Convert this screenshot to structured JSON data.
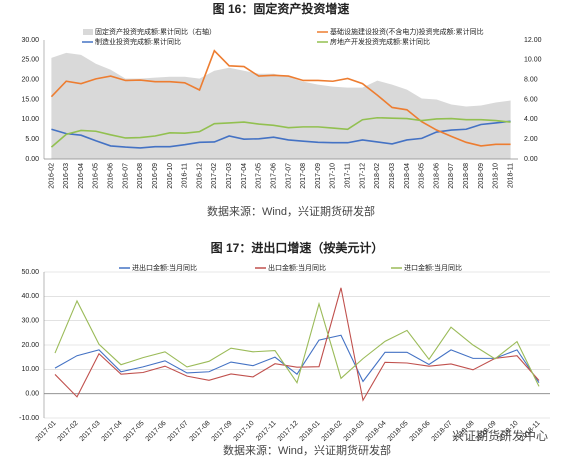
{
  "chart_data": [
    {
      "type": "line",
      "title": "图 16：固定资产投资增速",
      "source": "数据来源：Wind，兴证期货研发部",
      "categories": [
        "2016-02",
        "2016-03",
        "2016-04",
        "2016-05",
        "2016-06",
        "2016-07",
        "2016-08",
        "2016-09",
        "2016-10",
        "2016-11",
        "2016-12",
        "2017-02",
        "2017-03",
        "2017-04",
        "2017-05",
        "2017-06",
        "2017-07",
        "2017-08",
        "2017-09",
        "2017-10",
        "2017-11",
        "2017-12",
        "2018-02",
        "2018-03",
        "2018-04",
        "2018-05",
        "2018-06",
        "2018-07",
        "2018-08",
        "2018-09",
        "2018-10",
        "2018-11"
      ],
      "ylim": [
        0,
        30
      ],
      "yticks": [
        {
          "value": 0,
          "label": "0.00"
        },
        {
          "value": 5,
          "label": "5.00"
        },
        {
          "value": 10,
          "label": "10.00"
        },
        {
          "value": 15,
          "label": "15.00"
        },
        {
          "value": 20,
          "label": "20.00"
        },
        {
          "value": 25,
          "label": "25.00"
        },
        {
          "value": 30,
          "label": "30.00"
        }
      ],
      "y2lim": [
        0,
        12
      ],
      "y2ticks": [
        {
          "value": 0,
          "label": "0.00"
        },
        {
          "value": 2,
          "label": "2.00"
        },
        {
          "value": 4,
          "label": "4.00"
        },
        {
          "value": 6,
          "label": "6.00"
        },
        {
          "value": 8,
          "label": "8.00"
        },
        {
          "value": 10,
          "label": "10.00"
        },
        {
          "value": 12,
          "label": "12.00"
        }
      ],
      "grid": false,
      "series": [
        {
          "name": "固定资产投资完成额:累计同比（右轴）",
          "type": "area",
          "axis": "y2",
          "color": "#d9d9d9",
          "values": [
            10.2,
            10.7,
            10.5,
            9.6,
            9.0,
            8.1,
            8.1,
            8.2,
            8.3,
            8.3,
            8.1,
            8.9,
            9.2,
            8.9,
            8.6,
            8.6,
            8.3,
            7.8,
            7.5,
            7.3,
            7.2,
            7.2,
            7.9,
            7.5,
            7.0,
            6.1,
            6.0,
            5.5,
            5.3,
            5.4,
            5.7,
            5.9
          ]
        },
        {
          "name": "制造业投资完成额:累计同比",
          "color": "#4472c4",
          "values": [
            7.5,
            6.4,
            6.0,
            4.6,
            3.3,
            3.0,
            2.8,
            3.1,
            3.1,
            3.6,
            4.2,
            4.3,
            5.8,
            5.0,
            5.1,
            5.5,
            4.8,
            4.5,
            4.2,
            4.1,
            4.1,
            4.8,
            4.3,
            3.8,
            4.8,
            5.2,
            6.8,
            7.3,
            7.5,
            8.7,
            9.1,
            9.5
          ]
        },
        {
          "name": "基础设施建设投资(不含电力)投资完成额:累计同比",
          "color": "#ed7d31",
          "values": [
            15.7,
            19.6,
            19.0,
            20.2,
            20.9,
            19.8,
            19.9,
            19.5,
            19.5,
            19.2,
            17.4,
            27.3,
            23.5,
            23.3,
            20.9,
            21.1,
            20.9,
            19.8,
            19.8,
            19.6,
            20.3,
            19.0,
            16.1,
            13.0,
            12.4,
            9.4,
            7.3,
            5.7,
            4.2,
            3.3,
            3.7,
            3.7
          ]
        },
        {
          "name": "房地产开发投资完成额:累计同比",
          "color": "#92c050",
          "values": [
            3.0,
            6.2,
            7.2,
            7.0,
            6.1,
            5.3,
            5.4,
            5.8,
            6.6,
            6.5,
            6.9,
            8.9,
            9.1,
            9.3,
            8.8,
            8.5,
            7.9,
            8.1,
            8.1,
            7.8,
            7.5,
            9.9,
            10.4,
            10.3,
            10.2,
            9.7,
            10.1,
            10.2,
            9.9,
            9.9,
            9.7,
            9.3
          ]
        }
      ]
    },
    {
      "type": "line",
      "title": "图 17：进出口增速（按美元计）",
      "source": "数据来源：Wind，兴证期货研发部",
      "watermark": "兴证期货研发中心",
      "categories": [
        "2017-01",
        "2017-02",
        "2017-03",
        "2017-04",
        "2017-05",
        "2017-06",
        "2017-07",
        "2017-08",
        "2017-09",
        "2017-10",
        "2017-11",
        "2017-12",
        "2018-01",
        "2018-02",
        "2018-03",
        "2018-04",
        "2018-05",
        "2018-06",
        "2018-07",
        "2018-08",
        "2018-09",
        "2018-10",
        "2018-11"
      ],
      "ylim": [
        -10,
        50
      ],
      "yticks": [
        {
          "value": -10,
          "label": "-10.00"
        },
        {
          "value": 0,
          "label": "0.00"
        },
        {
          "value": 10,
          "label": "10.00"
        },
        {
          "value": 20,
          "label": "20.00"
        },
        {
          "value": 30,
          "label": "30.00"
        },
        {
          "value": 40,
          "label": "40.00"
        },
        {
          "value": 50,
          "label": "50.00"
        }
      ],
      "grid": true,
      "series": [
        {
          "name": "进出口金额:当月同比",
          "color": "#4472c4",
          "values": [
            10.5,
            15.6,
            18.0,
            9.0,
            11.0,
            13.5,
            8.5,
            9.0,
            13.0,
            11.5,
            15.0,
            8.0,
            22.0,
            24.0,
            5.0,
            17.0,
            17.0,
            12.0,
            18.0,
            14.5,
            14.5,
            18.0,
            4.5
          ]
        },
        {
          "name": "出口金额:当月同比",
          "color": "#c0504d",
          "values": [
            7.9,
            -1.3,
            16.4,
            8.0,
            8.7,
            11.3,
            7.2,
            5.5,
            8.1,
            6.9,
            12.3,
            10.9,
            11.1,
            43.5,
            -2.7,
            12.9,
            12.6,
            11.3,
            12.2,
            9.8,
            14.5,
            15.6,
            5.4
          ]
        },
        {
          "name": "进口金额:当月同比",
          "color": "#9bbb59",
          "values": [
            16.7,
            38.1,
            20.3,
            11.9,
            14.8,
            17.2,
            11.0,
            13.3,
            18.7,
            17.2,
            17.7,
            4.5,
            36.9,
            6.3,
            14.4,
            21.5,
            26.0,
            14.1,
            27.3,
            20.0,
            14.3,
            21.4,
            3.0
          ]
        }
      ]
    }
  ]
}
